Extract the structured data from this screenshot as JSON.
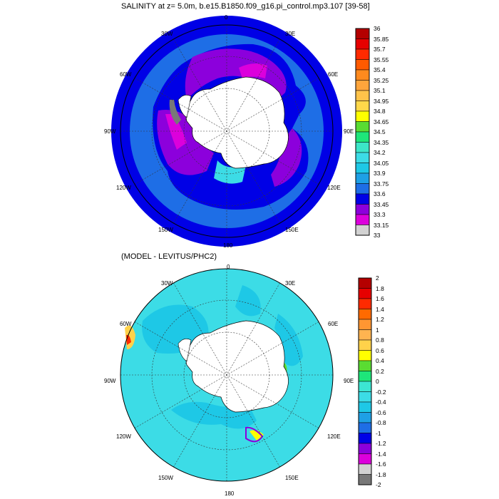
{
  "panel_top": {
    "title": "SALINITY at z=   5.0m, b.e15.B1850.f09_g16.pi_control.mp3.107 [39-58]",
    "longitude_labels": {
      "n": "0",
      "nne": "30E",
      "ene": "60E",
      "e": "90E",
      "ese": "120E",
      "sse": "150E",
      "s": "180",
      "ssw": "150W",
      "wsw": "120W",
      "w": "90W",
      "wnw": "60W",
      "nnw": "30W"
    },
    "colorbar_labels": [
      "36",
      "35.85",
      "35.7",
      "35.55",
      "35.4",
      "35.25",
      "35.1",
      "34.95",
      "34.8",
      "34.65",
      "34.5",
      "34.35",
      "34.2",
      "34.05",
      "33.9",
      "33.75",
      "33.6",
      "33.45",
      "33.3",
      "33.15",
      "33"
    ],
    "colorbar_colors": [
      "#b40000",
      "#e60000",
      "#ff2a00",
      "#ff5a00",
      "#ff8a1e",
      "#ffa53c",
      "#ffc34a",
      "#ffd84a",
      "#ffff00",
      "#5adc32",
      "#1ee67a",
      "#3ce6c8",
      "#3cdce6",
      "#1ec8e6",
      "#1ea0e6",
      "#1e6ee6",
      "#0000e6",
      "#8c00dc",
      "#dc00dc",
      "#d2d2d2"
    ]
  },
  "panel_bottom": {
    "title": "(MODEL - LEVITUS/PHC2)",
    "longitude_labels": {
      "n": "0",
      "nne": "30E",
      "ene": "60E",
      "e": "90E",
      "ese": "120E",
      "sse": "150E",
      "s": "180",
      "ssw": "150W",
      "wsw": "120W",
      "w": "90W",
      "wnw": "60W",
      "nnw": "30W"
    },
    "colorbar_labels": [
      "2",
      "1.8",
      "1.6",
      "1.4",
      "1.2",
      "1",
      "0.8",
      "0.6",
      "0.4",
      "0.2",
      "0",
      "-0.2",
      "-0.4",
      "-0.6",
      "-0.8",
      "-1",
      "-1.2",
      "-1.4",
      "-1.6",
      "-1.8",
      "-2"
    ],
    "colorbar_colors": [
      "#b40000",
      "#e60000",
      "#ff2a00",
      "#ff6a00",
      "#ff9632",
      "#ffb450",
      "#ffd24a",
      "#ffff00",
      "#5adc32",
      "#1ee67a",
      "#3ce6d2",
      "#3cdce6",
      "#1ec8e6",
      "#1ea0e6",
      "#1e6ee6",
      "#0000e6",
      "#8c00dc",
      "#dc00dc",
      "#d2d2d2",
      "#787878"
    ]
  }
}
